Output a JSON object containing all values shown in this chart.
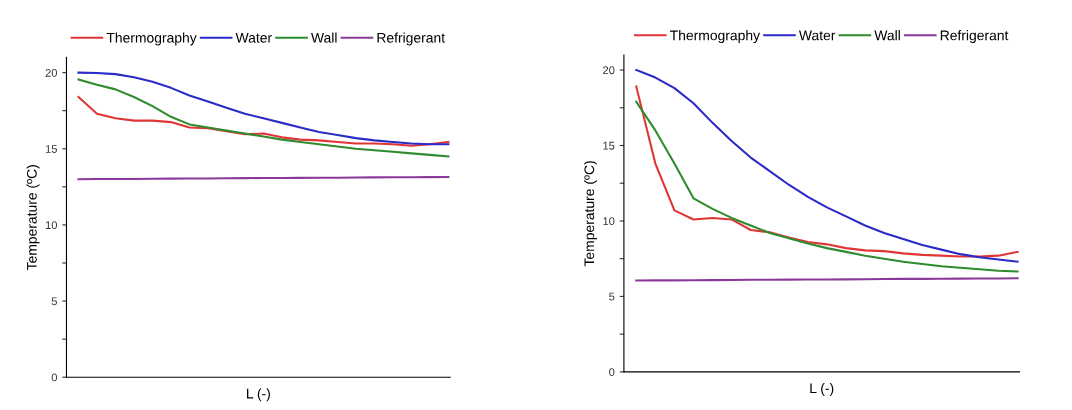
{
  "chart_data": [
    {
      "type": "line",
      "xlabel": "L (-)",
      "ylabel": "Temperature (ºC)",
      "categories": [
        null,
        null,
        null,
        null,
        null,
        null,
        null,
        null,
        null,
        null,
        null,
        null,
        null,
        null,
        null,
        null,
        null,
        null,
        null,
        null,
        null
      ],
      "ylim": [
        0,
        21
      ],
      "yticks": [
        0,
        {
          "value": 2.5,
          "label": null
        },
        5,
        {
          "value": 7.5,
          "label": null
        },
        10,
        {
          "value": 12.5,
          "label": null
        },
        15,
        {
          "value": 17.5,
          "label": null
        },
        20
      ],
      "tick_labels": "y",
      "legend": "top",
      "grid": false,
      "line_style": "solid",
      "marker": "none",
      "series": [
        {
          "name": "Thermography",
          "color": "#e03535",
          "values": [
            18.4,
            17.3,
            17.0,
            16.85,
            16.85,
            16.75,
            16.4,
            16.35,
            16.15,
            15.95,
            16.0,
            15.75,
            15.6,
            15.55,
            15.45,
            15.35,
            15.35,
            15.3,
            15.2,
            15.3,
            15.45
          ]
        },
        {
          "name": "Water",
          "color": "#2b2bc8",
          "values": [
            20.0,
            19.98,
            19.9,
            19.7,
            19.4,
            19.0,
            18.5,
            18.1,
            17.7,
            17.3,
            17.0,
            16.7,
            16.4,
            16.1,
            15.9,
            15.7,
            15.55,
            15.45,
            15.35,
            15.3,
            15.3
          ]
        },
        {
          "name": "Wall",
          "color": "#2e8b2e",
          "values": [
            19.55,
            19.2,
            18.9,
            18.4,
            17.8,
            17.1,
            16.6,
            16.4,
            16.2,
            16.0,
            15.8,
            15.6,
            15.45,
            15.3,
            15.15,
            15.0,
            14.9,
            14.8,
            14.7,
            14.6,
            14.5
          ]
        },
        {
          "name": "Refrigerant",
          "color": "#8b3a9b",
          "values": [
            13.0,
            13.01,
            13.02,
            13.02,
            13.03,
            13.04,
            13.05,
            13.05,
            13.06,
            13.07,
            13.08,
            13.08,
            13.09,
            13.1,
            13.1,
            13.11,
            13.12,
            13.13,
            13.13,
            13.14,
            13.15
          ]
        }
      ]
    },
    {
      "type": "line",
      "xlabel": "L (-)",
      "ylabel": "Temperature (ºC)",
      "categories": [
        null,
        null,
        null,
        null,
        null,
        null,
        null,
        null,
        null,
        null,
        null,
        null,
        null,
        null,
        null,
        null,
        null,
        null,
        null,
        null,
        null
      ],
      "ylim": [
        0,
        21
      ],
      "yticks": [
        0,
        {
          "value": 2.5,
          "label": null
        },
        5,
        {
          "value": 7.5,
          "label": null
        },
        10,
        {
          "value": 12.5,
          "label": null
        },
        15,
        {
          "value": 17.5,
          "label": null
        },
        20
      ],
      "tick_labels": "y",
      "legend": "top",
      "grid": false,
      "line_style": "solid",
      "marker": "none",
      "series": [
        {
          "name": "Thermography",
          "color": "#e03535",
          "values": [
            18.9,
            13.8,
            10.7,
            10.1,
            10.2,
            10.1,
            9.4,
            9.25,
            8.9,
            8.6,
            8.45,
            8.2,
            8.05,
            8.0,
            7.85,
            7.75,
            7.7,
            7.65,
            7.65,
            7.7,
            7.95
          ]
        },
        {
          "name": "Water",
          "color": "#2b2bc8",
          "values": [
            20.0,
            19.5,
            18.8,
            17.8,
            16.5,
            15.3,
            14.2,
            13.3,
            12.4,
            11.6,
            10.9,
            10.3,
            9.7,
            9.2,
            8.8,
            8.4,
            8.1,
            7.8,
            7.6,
            7.45,
            7.3
          ]
        },
        {
          "name": "Wall",
          "color": "#2e8b2e",
          "values": [
            17.9,
            16.0,
            13.8,
            11.5,
            10.8,
            10.2,
            9.7,
            9.2,
            8.85,
            8.5,
            8.2,
            7.95,
            7.7,
            7.5,
            7.3,
            7.15,
            7.0,
            6.9,
            6.8,
            6.7,
            6.65
          ]
        },
        {
          "name": "Refrigerant",
          "color": "#8b3a9b",
          "values": [
            6.05,
            6.06,
            6.06,
            6.07,
            6.08,
            6.09,
            6.1,
            6.1,
            6.11,
            6.12,
            6.12,
            6.13,
            6.14,
            6.15,
            6.16,
            6.16,
            6.17,
            6.18,
            6.19,
            6.19,
            6.2
          ]
        }
      ]
    }
  ]
}
